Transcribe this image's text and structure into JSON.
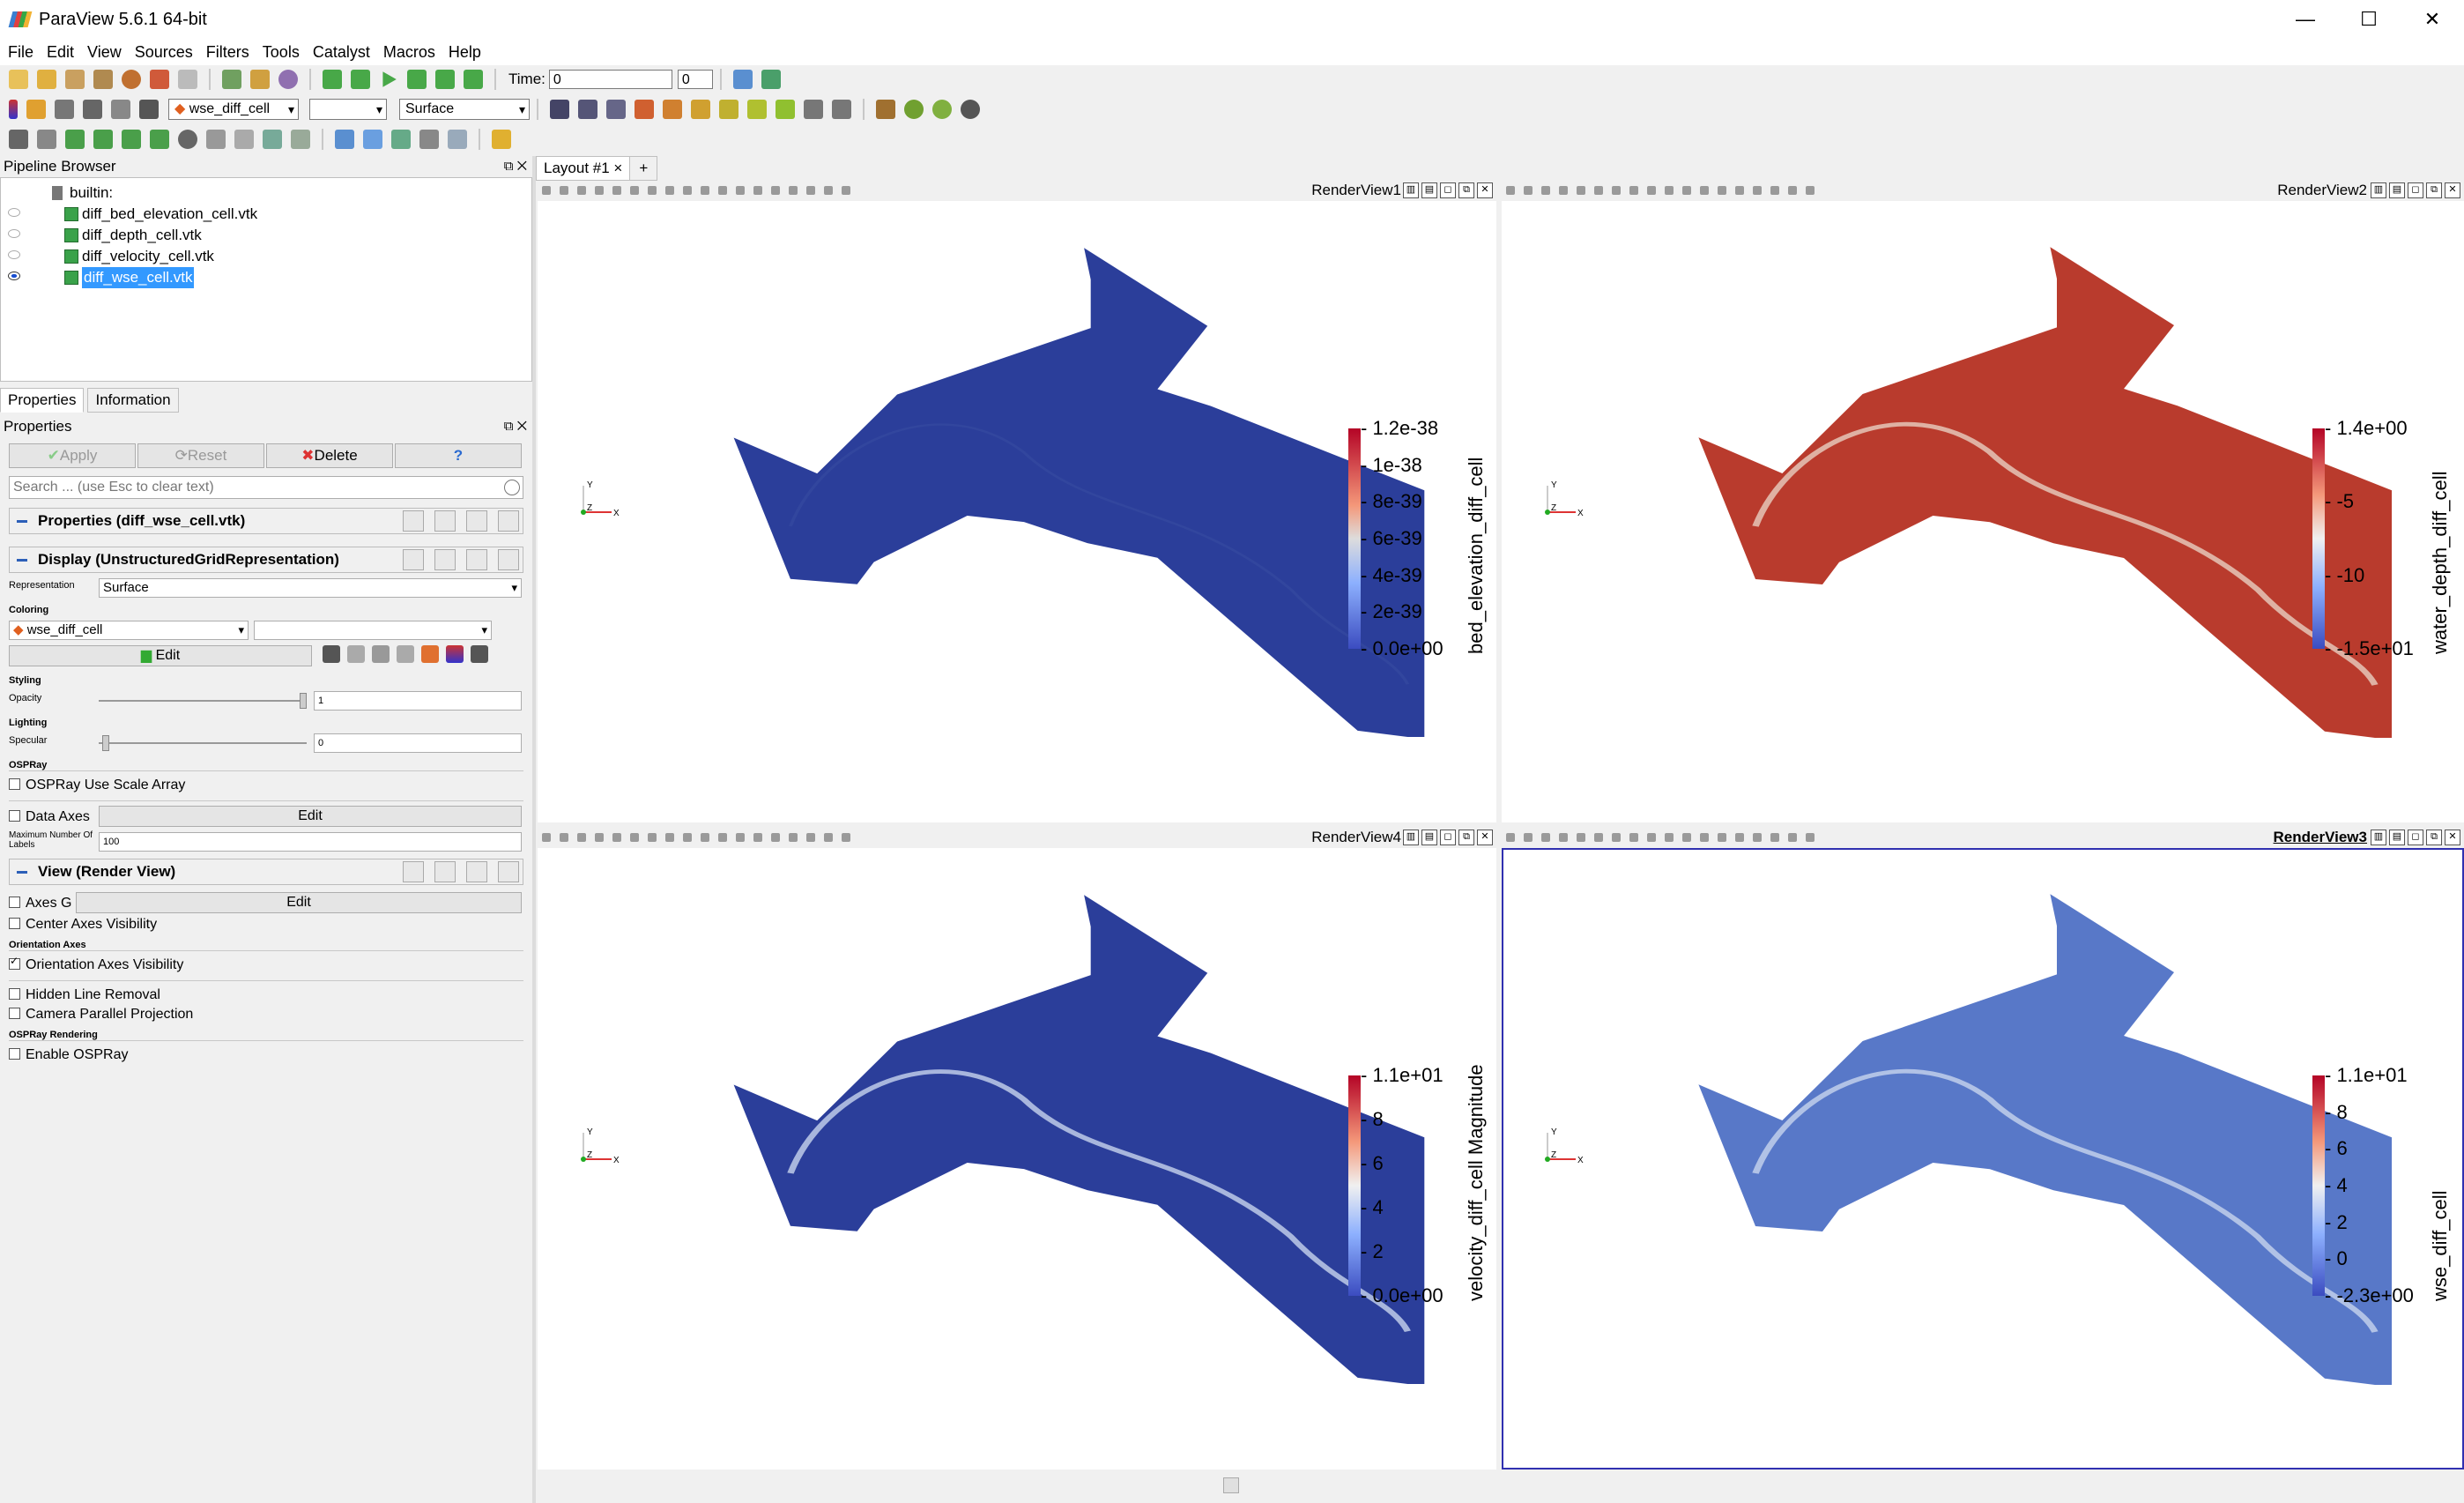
{
  "window": {
    "title": "ParaView 5.6.1 64-bit",
    "minimize": "—",
    "maximize": "☐",
    "close": "✕"
  },
  "menu": [
    "File",
    "Edit",
    "View",
    "Sources",
    "Filters",
    "Tools",
    "Catalyst",
    "Macros",
    "Help"
  ],
  "toolbar": {
    "time_label": "Time:",
    "time_value": "0",
    "timestep_value": "0",
    "active_variable": "wse_diff_cell",
    "component": "",
    "representation": "Surface"
  },
  "pipeline_browser": {
    "title": "Pipeline Browser",
    "root": "builtin:",
    "items": [
      {
        "label": "diff_bed_elevation_cell.vtk",
        "visible": false,
        "selected": false
      },
      {
        "label": "diff_depth_cell.vtk",
        "visible": false,
        "selected": false
      },
      {
        "label": "diff_velocity_cell.vtk",
        "visible": false,
        "selected": false
      },
      {
        "label": "diff_wse_cell.vtk",
        "visible": true,
        "selected": true
      }
    ]
  },
  "tabs": {
    "properties": "Properties",
    "information": "Information"
  },
  "properties_panel": {
    "title": "Properties",
    "apply": "Apply",
    "reset": "Reset",
    "delete": "Delete",
    "help": "?",
    "search_placeholder": "Search ... (use Esc to clear text)",
    "section_properties": "Properties (diff_wse_cell.vtk)",
    "section_display": "Display (UnstructuredGridRepresentation)",
    "representation_label": "Representation",
    "representation_value": "Surface",
    "coloring_label": "Coloring",
    "coloring_value": "wse_diff_cell",
    "edit_label": "Edit",
    "styling_label": "Styling",
    "opacity_label": "Opacity",
    "opacity_value": "1",
    "lighting_label": "Lighting",
    "specular_label": "Specular",
    "specular_value": "0",
    "ospray_label": "OSPRay",
    "ospray_scale_array": "OSPRay Use Scale Array",
    "data_axes_label": "Data Axes",
    "data_axes_edit": "Edit",
    "max_labels_label": "Maximum Number Of Labels",
    "max_labels_value": "100",
    "section_view": "View (Render View)",
    "axes_grid_label": "Axes G",
    "axes_grid_edit": "Edit",
    "center_axes": "Center Axes Visibility",
    "orientation_axes_heading": "Orientation Axes",
    "orientation_axes_vis": "Orientation Axes Visibility",
    "hidden_line": "Hidden Line Removal",
    "camera_parallel": "Camera Parallel Projection",
    "ospray_rendering_heading": "OSPRay Rendering",
    "enable_ospray": "Enable OSPRay"
  },
  "layout": {
    "tab": "Layout #1",
    "close": "×",
    "add": "+"
  },
  "views": [
    {
      "name": "RenderView1",
      "active": false,
      "colorbar_title": "bed_elevation_diff_cell",
      "ticks": [
        "1.2e-38",
        "1e-38",
        "8e-39",
        "6e-39",
        "4e-39",
        "2e-39",
        "0.0e+00"
      ],
      "gradient": "blue",
      "fill": "#2b3e9a"
    },
    {
      "name": "RenderView2",
      "active": false,
      "colorbar_title": "water_depth_diff_cell",
      "ticks": [
        "1.4e+00",
        "-5",
        "-10",
        "-1.5e+01"
      ],
      "gradient": "coolwarm",
      "fill": "#b93b2d"
    },
    {
      "name": "RenderView4",
      "active": false,
      "colorbar_title": "velocity_diff_cell Magnitude",
      "ticks": [
        "1.1e+01",
        "8",
        "6",
        "4",
        "2",
        "0.0e+00"
      ],
      "gradient": "coolwarm",
      "fill": "#2b3e9a"
    },
    {
      "name": "RenderView3",
      "active": true,
      "colorbar_title": "wse_diff_cell",
      "ticks": [
        "1.1e+01",
        "8",
        "6",
        "4",
        "2",
        "0",
        "-2.3e+00"
      ],
      "gradient": "coolwarm",
      "fill": "#5878c8"
    }
  ],
  "axes_labels": {
    "x": "X",
    "y": "Y",
    "z": "Z"
  },
  "colors": {
    "accent": "#3030b0",
    "selection": "#3399ff",
    "blue_low": "#3b4cc0",
    "red_high": "#b40426"
  }
}
